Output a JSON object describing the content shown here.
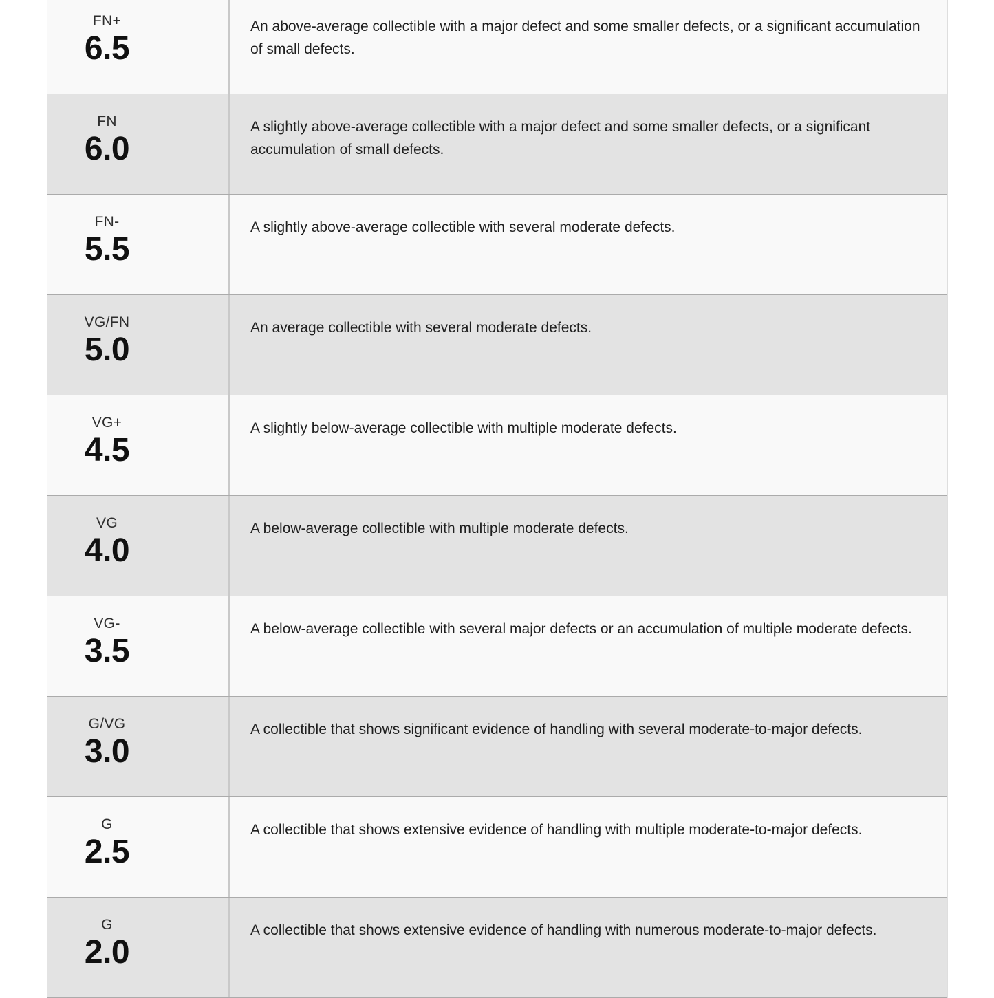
{
  "theme": {
    "page_bg": "#ffffff",
    "row_bg_light": "#f9f9f9",
    "row_bg_dark": "#e3e3e3",
    "row_border": "#ababab",
    "divider": "#c9c9c9",
    "label_color": "#2e2e2e",
    "grade_color": "#111111",
    "desc_color": "#1f1f1f"
  },
  "grading_scale": {
    "rows": [
      {
        "label": "FN+",
        "grade": "6.5",
        "description": "An above-average collectible with a major defect and some smaller defects, or a significant accumulation of small defects."
      },
      {
        "label": "FN",
        "grade": "6.0",
        "description": "A slightly above-average collectible with a major defect and some smaller defects, or a significant accumulation of small defects."
      },
      {
        "label": "FN-",
        "grade": "5.5",
        "description": "A slightly above-average collectible with several moderate defects."
      },
      {
        "label": "VG/FN",
        "grade": "5.0",
        "description": "An average collectible with several moderate defects."
      },
      {
        "label": "VG+",
        "grade": "4.5",
        "description": "A slightly below-average collectible with multiple moderate defects."
      },
      {
        "label": "VG",
        "grade": "4.0",
        "description": "A below-average collectible with multiple moderate defects."
      },
      {
        "label": "VG-",
        "grade": "3.5",
        "description": "A below-average collectible with several major defects or an accumulation of multiple moderate defects."
      },
      {
        "label": "G/VG",
        "grade": "3.0",
        "description": "A collectible that shows significant evidence of handling with several moderate-to-major defects."
      },
      {
        "label": "G",
        "grade": "2.5",
        "description": "A collectible that shows extensive evidence of handling with multiple moderate-to-major defects."
      },
      {
        "label": "G",
        "grade": "2.0",
        "description": "A collectible that shows extensive evidence of handling with numerous moderate-to-major defects."
      }
    ]
  }
}
